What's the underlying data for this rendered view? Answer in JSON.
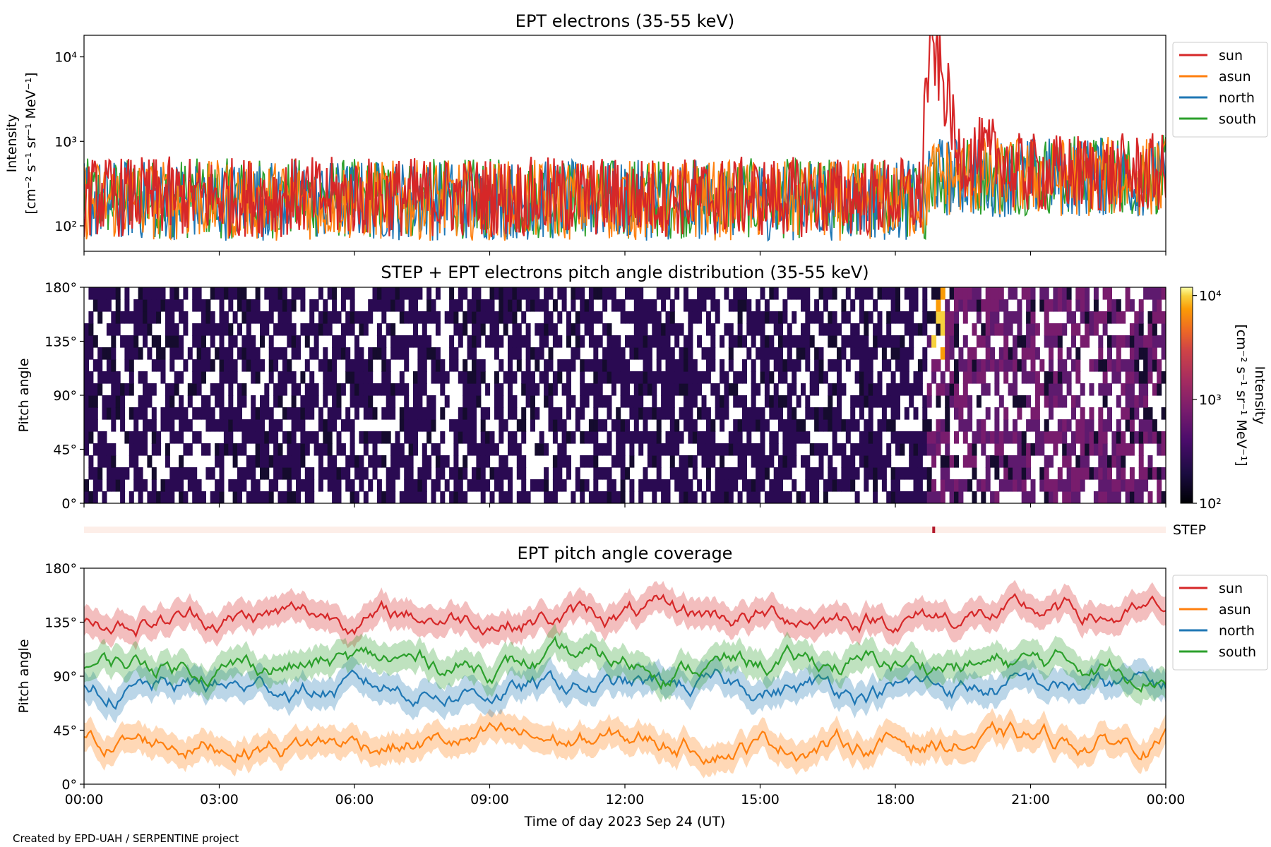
{
  "chart_data": [
    {
      "type": "line",
      "title": "EPT electrons (35-55 keV)",
      "ylabel_lines": [
        "Intensity",
        "[cm⁻² s⁻¹ sr⁻¹ MeV⁻¹]"
      ],
      "yscale": "log",
      "ylim": [
        50,
        18000
      ],
      "yticks": [
        100,
        1000,
        10000
      ],
      "ytick_labels": [
        "10²",
        "10³",
        "10⁴"
      ],
      "xlim_hours": [
        0,
        24
      ],
      "legend_position": "outside-top-right",
      "series": [
        {
          "name": "sun",
          "color": "#d62728",
          "baseline": 220,
          "event": {
            "onset_hours": 18.6,
            "peak_hours": 18.85,
            "peak": 12000,
            "decay_to": 500
          }
        },
        {
          "name": "asun",
          "color": "#ff7f0e",
          "baseline": 200
        },
        {
          "name": "north",
          "color": "#1f77b4",
          "baseline": 200
        },
        {
          "name": "south",
          "color": "#2ca02c",
          "baseline": 210
        }
      ]
    },
    {
      "type": "heatmap",
      "title": "STEP + EPT electrons pitch angle distribution (35-55 keV)",
      "ylabel": "Pitch angle",
      "ylim": [
        0,
        180
      ],
      "yticks": [
        0,
        45,
        90,
        135,
        180
      ],
      "ytick_labels": [
        "0°",
        "45°",
        "90°",
        "135°",
        "180°"
      ],
      "colorbar": {
        "label_lines": [
          "Intensity",
          "[cm⁻² s⁻¹ sr⁻¹ MeV⁻¹]"
        ],
        "scale": "log",
        "range": [
          100,
          12000
        ],
        "ticks": [
          100,
          1000,
          10000
        ],
        "tick_labels": [
          "10²",
          "10³",
          "10⁴"
        ],
        "colormap": "inferno"
      }
    },
    {
      "type": "table",
      "label": "STEP",
      "event_hours": 18.85
    },
    {
      "type": "line",
      "title": "EPT pitch angle coverage",
      "ylabel": "Pitch angle",
      "ylim": [
        0,
        180
      ],
      "yticks": [
        0,
        45,
        90,
        135,
        180
      ],
      "ytick_labels": [
        "0°",
        "45°",
        "90°",
        "135°",
        "180°"
      ],
      "legend_position": "outside-top-right",
      "series": [
        {
          "name": "sun",
          "color": "#d62728",
          "mean": 140,
          "spread": 30
        },
        {
          "name": "asun",
          "color": "#ff7f0e",
          "mean": 35,
          "spread": 20
        },
        {
          "name": "north",
          "color": "#1f77b4",
          "mean": 80,
          "spread": 25
        },
        {
          "name": "south",
          "color": "#2ca02c",
          "mean": 100,
          "spread": 25
        }
      ]
    }
  ],
  "x_axis": {
    "tick_hours": [
      0,
      3,
      6,
      9,
      12,
      15,
      18,
      21,
      24
    ],
    "tick_labels": [
      "00:00",
      "03:00",
      "06:00",
      "09:00",
      "12:00",
      "15:00",
      "18:00",
      "21:00",
      "00:00"
    ],
    "xlabel": "Time of day 2023 Sep 24 (UT)"
  },
  "credit": "Created by EPD-UAH / SERPENTINE project"
}
